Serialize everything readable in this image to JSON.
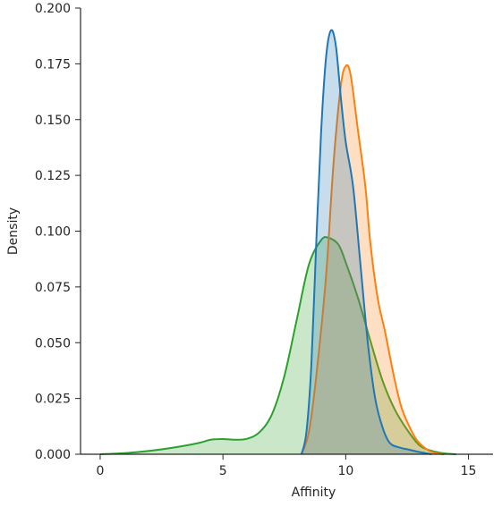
{
  "chart_data": {
    "type": "area",
    "xlabel": "Affinity",
    "ylabel": "Density",
    "xlim": [
      -0.8,
      16.0
    ],
    "ylim": [
      0,
      0.2
    ],
    "x_ticks": [
      0,
      5,
      10,
      15
    ],
    "x_tick_labels": [
      "0",
      "5",
      "10",
      "15"
    ],
    "y_ticks": [
      0,
      0.025,
      0.05,
      0.075,
      0.1,
      0.125,
      0.15,
      0.175,
      0.2
    ],
    "y_tick_labels": [
      "0.000",
      "0.025",
      "0.050",
      "0.075",
      "0.100",
      "0.125",
      "0.150",
      "0.175",
      "0.200"
    ],
    "grid": false,
    "legend": "none",
    "series": [
      {
        "color": "#2ca02c",
        "points": [
          [
            0.0,
            0.0
          ],
          [
            1.0,
            0.0005
          ],
          [
            2.0,
            0.0015
          ],
          [
            3.0,
            0.003
          ],
          [
            4.0,
            0.005
          ],
          [
            4.5,
            0.0065
          ],
          [
            5.0,
            0.0068
          ],
          [
            5.5,
            0.0065
          ],
          [
            6.0,
            0.007
          ],
          [
            6.5,
            0.01
          ],
          [
            7.0,
            0.018
          ],
          [
            7.5,
            0.035
          ],
          [
            8.0,
            0.06
          ],
          [
            8.5,
            0.085
          ],
          [
            9.0,
            0.096
          ],
          [
            9.3,
            0.097
          ],
          [
            9.7,
            0.094
          ],
          [
            10.0,
            0.086
          ],
          [
            10.5,
            0.07
          ],
          [
            11.0,
            0.051
          ],
          [
            11.5,
            0.033
          ],
          [
            12.0,
            0.02
          ],
          [
            12.5,
            0.011
          ],
          [
            13.0,
            0.004
          ],
          [
            13.5,
            0.0015
          ],
          [
            14.0,
            0.0004
          ],
          [
            14.5,
            0.0
          ]
        ]
      },
      {
        "color": "#ff7f0e",
        "points": [
          [
            8.2,
            0.0
          ],
          [
            8.5,
            0.01
          ],
          [
            8.8,
            0.035
          ],
          [
            9.2,
            0.08
          ],
          [
            9.5,
            0.13
          ],
          [
            9.8,
            0.165
          ],
          [
            10.0,
            0.174
          ],
          [
            10.2,
            0.17
          ],
          [
            10.5,
            0.145
          ],
          [
            10.8,
            0.12
          ],
          [
            11.0,
            0.095
          ],
          [
            11.3,
            0.07
          ],
          [
            11.6,
            0.055
          ],
          [
            12.0,
            0.033
          ],
          [
            12.3,
            0.02
          ],
          [
            12.7,
            0.01
          ],
          [
            13.0,
            0.005
          ],
          [
            13.5,
            0.001
          ],
          [
            14.0,
            0.0
          ]
        ]
      },
      {
        "color": "#1f77b4",
        "points": [
          [
            8.2,
            0.0
          ],
          [
            8.4,
            0.01
          ],
          [
            8.6,
            0.04
          ],
          [
            8.8,
            0.095
          ],
          [
            9.0,
            0.145
          ],
          [
            9.2,
            0.178
          ],
          [
            9.4,
            0.19
          ],
          [
            9.6,
            0.183
          ],
          [
            9.8,
            0.16
          ],
          [
            10.0,
            0.14
          ],
          [
            10.3,
            0.12
          ],
          [
            10.6,
            0.085
          ],
          [
            10.9,
            0.05
          ],
          [
            11.2,
            0.025
          ],
          [
            11.5,
            0.012
          ],
          [
            11.8,
            0.005
          ],
          [
            12.2,
            0.003
          ],
          [
            12.6,
            0.002
          ],
          [
            13.0,
            0.001
          ],
          [
            13.5,
            0.0
          ]
        ]
      }
    ]
  }
}
